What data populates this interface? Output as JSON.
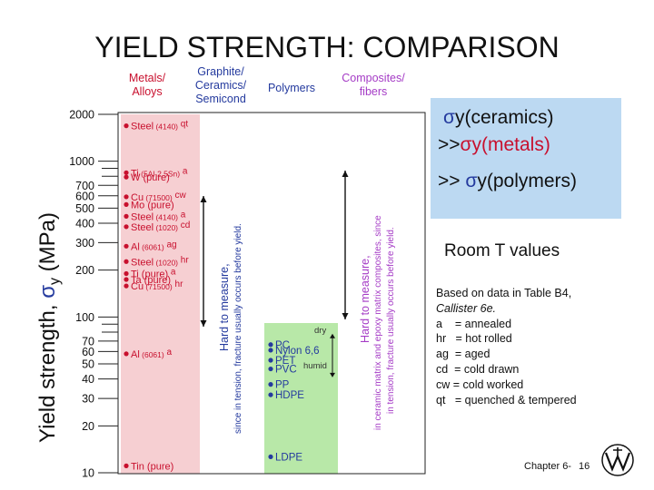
{
  "title": "YIELD STRENGTH: COMPARISON",
  "colors": {
    "metals_band": "#f6cfd2",
    "polymers_band": "#b8e8a8",
    "metals_label": "#c8102e",
    "ceramics_label": "#243a9e",
    "polymers_label": "#243a9e",
    "composites_label": "#a53cc6",
    "sigma_box": "#bcd9f2"
  },
  "chart_data": {
    "type": "scatter",
    "title": "YIELD STRENGTH: COMPARISON",
    "ylabel": "Yield strength, σy (MPa)",
    "yscale": "log",
    "ylim": [
      10,
      2000
    ],
    "yticks": [
      10,
      20,
      30,
      40,
      50,
      60,
      70,
      100,
      200,
      300,
      400,
      500,
      600,
      700,
      1000,
      2000
    ],
    "categories": [
      "Metals/ Alloys",
      "Graphite/ Ceramics/ Semicond",
      "Polymers",
      "Composites/ fibers"
    ],
    "series": [
      {
        "category": "Metals/ Alloys",
        "points": [
          {
            "label": "Steel",
            "sub": "(4140)",
            "cond": "qt",
            "value": 1600
          },
          {
            "label": "Ti",
            "sub": "(5Al-2.5Sn)",
            "cond": "a",
            "value": 800
          },
          {
            "label": "W (pure)",
            "sub": "",
            "cond": "",
            "value": 750
          },
          {
            "label": "Cu",
            "sub": "(71500)",
            "cond": "cw",
            "value": 560
          },
          {
            "label": "Mo (pure)",
            "sub": "",
            "cond": "",
            "value": 500
          },
          {
            "label": "Steel",
            "sub": "(4140)",
            "cond": "a",
            "value": 420
          },
          {
            "label": "Steel",
            "sub": "(1020)",
            "cond": "cd",
            "value": 360
          },
          {
            "label": "Al",
            "sub": "(6061)",
            "cond": "ag",
            "value": 270
          },
          {
            "label": "Steel",
            "sub": "(1020)",
            "cond": "hr",
            "value": 215
          },
          {
            "label": "Ti (pure)",
            "sub": "",
            "cond": "a",
            "value": 180
          },
          {
            "label": "Ta (pure)",
            "sub": "",
            "cond": "",
            "value": 165
          },
          {
            "label": "Cu",
            "sub": "(71500)",
            "cond": "hr",
            "value": 150
          },
          {
            "label": "Al",
            "sub": "(6061)",
            "cond": "a",
            "value": 55
          },
          {
            "label": "Tin (pure)",
            "sub": "",
            "cond": "",
            "value": 10.5
          }
        ]
      },
      {
        "category": "Polymers",
        "points": [
          {
            "label": "PC",
            "value": 63
          },
          {
            "label": "Nylon 6,6",
            "value": 58
          },
          {
            "label": "PET",
            "value": 50
          },
          {
            "label": "PVC",
            "value": 44
          },
          {
            "label": "PP",
            "value": 35
          },
          {
            "label": "HDPE",
            "value": 30
          },
          {
            "label": "LDPE",
            "value": 12
          }
        ],
        "annotations": {
          "dry": "dry",
          "humid": "humid",
          "dry_value": 75,
          "humid_value": 45
        }
      }
    ],
    "ceramics_note": [
      "Hard to measure,",
      "since in tension, fracture usually occurs before yield."
    ],
    "composites_note": [
      "Hard to measure,",
      "in ceramic matrix and epoxy matrix composites, since",
      "in tension, fracture usually occurs before yield."
    ]
  },
  "sigma_box": {
    "line1": "y(ceramics)",
    "line2_prefix": ">>",
    "line2": "y(metals)",
    "line3_prefix": ">>",
    "line3": "y(polymers)",
    "sigma": "σ"
  },
  "room_label": "Room T values",
  "notes": [
    "Based on data in Table B4,",
    "Callister 6e.",
    "a    = annealed",
    "hr   = hot rolled",
    "ag  = aged",
    "cd  = cold drawn",
    "cw = cold worked",
    "qt   = quenched & tempered"
  ],
  "footer": {
    "chapter": "Chapter 6-",
    "page": "16"
  }
}
